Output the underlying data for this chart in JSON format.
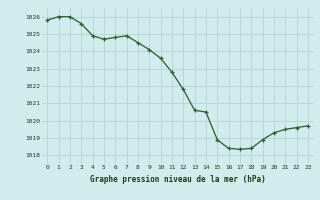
{
  "x": [
    0,
    1,
    2,
    3,
    4,
    5,
    6,
    7,
    8,
    9,
    10,
    11,
    12,
    13,
    14,
    15,
    16,
    17,
    18,
    19,
    20,
    21,
    22,
    23
  ],
  "y": [
    1025.8,
    1026.0,
    1026.0,
    1025.6,
    1024.9,
    1024.7,
    1024.8,
    1024.9,
    1024.5,
    1024.1,
    1023.6,
    1022.8,
    1021.8,
    1020.6,
    1020.5,
    1018.9,
    1018.4,
    1018.35,
    1018.4,
    1018.9,
    1019.3,
    1019.5,
    1019.6,
    1019.7
  ],
  "line_color": "#2d5c2d",
  "marker_color": "#2d5c2d",
  "bg_color": "#d0ecec",
  "grid_color": "#b8d8d8",
  "label_color": "#1a3a1a",
  "xlabel": "Graphe pression niveau de la mer (hPa)",
  "ylim": [
    1017.5,
    1026.5
  ],
  "xlim": [
    -0.5,
    23.5
  ],
  "yticks": [
    1018,
    1019,
    1020,
    1021,
    1022,
    1023,
    1024,
    1025,
    1026
  ],
  "xticks": [
    0,
    1,
    2,
    3,
    4,
    5,
    6,
    7,
    8,
    9,
    10,
    11,
    12,
    13,
    14,
    15,
    16,
    17,
    18,
    19,
    20,
    21,
    22,
    23
  ]
}
